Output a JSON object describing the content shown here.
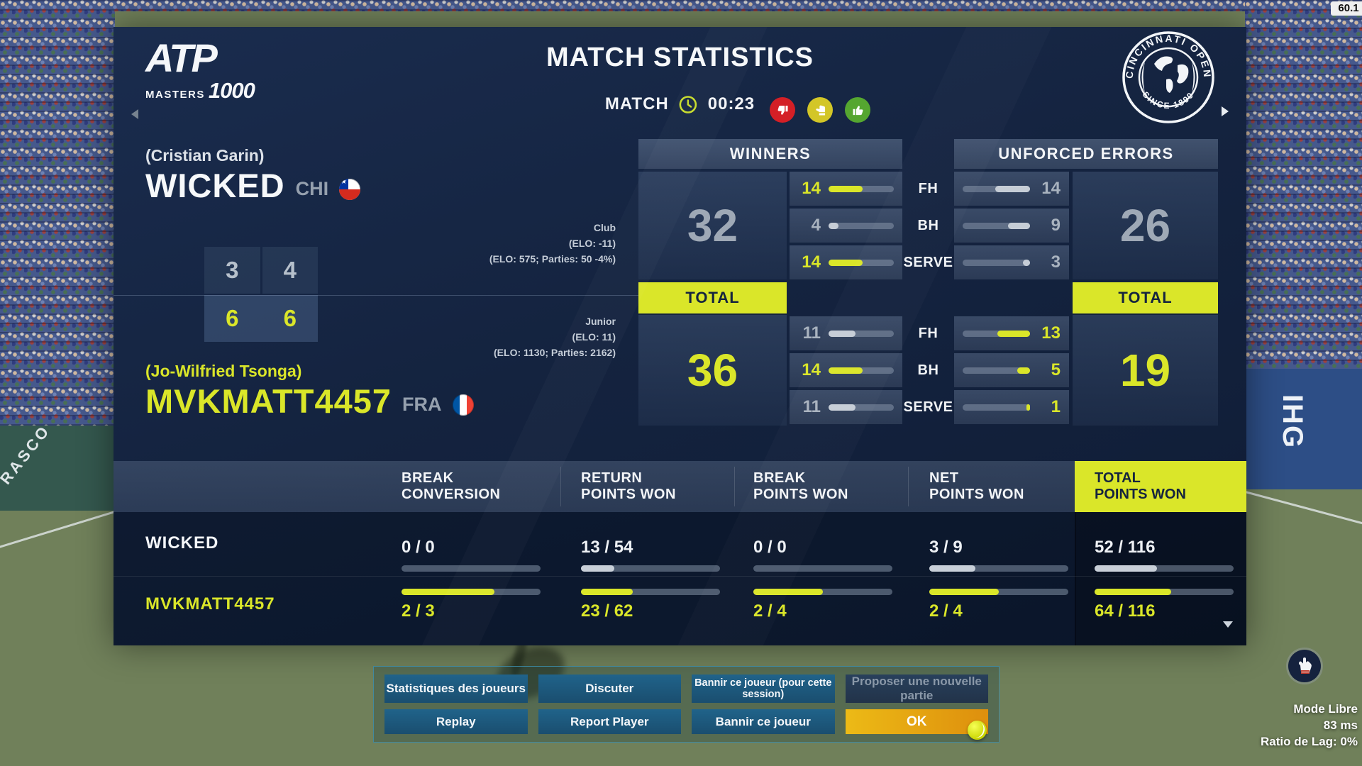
{
  "hud": {
    "fps": "60.1",
    "network": {
      "mode": "Mode Libre",
      "ping": "83 ms",
      "lag": "Ratio de Lag: 0%"
    }
  },
  "header": {
    "title": "MATCH STATISTICS",
    "match_label": "MATCH",
    "match_time": "00:23",
    "atp": {
      "line1": "ATP",
      "line2": "MASTERS",
      "line3": "1000"
    },
    "cincinnati": {
      "top": "CINCINNATI OPEN",
      "bottom": "SINCE 1899"
    }
  },
  "players": [
    {
      "real_name": "(Cristian Garin)",
      "gamertag": "WICKED",
      "country": "CHI",
      "rank_label": "Club",
      "elo_change": "(ELO: -11)",
      "elo_detail": "(ELO: 575; Parties: 50 -4%)",
      "sets": [
        "3",
        "4"
      ]
    },
    {
      "real_name": "(Jo-Wilfried Tsonga)",
      "gamertag": "MVKMATT4457",
      "country": "FRA",
      "rank_label": "Junior",
      "elo_change": "(ELO: 11)",
      "elo_detail": "(ELO: 1130; Parties: 2162)",
      "sets": [
        "6",
        "6"
      ]
    }
  ],
  "stats": {
    "row_labels": [
      "FH",
      "BH",
      "SERVE"
    ],
    "winners": {
      "title": "WINNERS",
      "total_label": "TOTAL",
      "p1_total": "32",
      "p2_total": "36",
      "p1_rows": [
        {
          "value": "14",
          "pct": 52,
          "hl": true
        },
        {
          "value": "4",
          "pct": 15,
          "hl": false
        },
        {
          "value": "14",
          "pct": 52,
          "hl": true
        }
      ],
      "p2_rows": [
        {
          "value": "11",
          "pct": 41,
          "hl": false
        },
        {
          "value": "14",
          "pct": 52,
          "hl": true
        },
        {
          "value": "11",
          "pct": 41,
          "hl": false
        }
      ]
    },
    "unforced_errors": {
      "title": "UNFORCED ERRORS",
      "total_label": "TOTAL",
      "p1_total": "26",
      "p2_total": "19",
      "p1_rows": [
        {
          "value": "14",
          "pct": 52,
          "hl": false
        },
        {
          "value": "9",
          "pct": 33,
          "hl": false
        },
        {
          "value": "3",
          "pct": 11,
          "hl": false
        }
      ],
      "p2_rows": [
        {
          "value": "13",
          "pct": 48,
          "hl": true
        },
        {
          "value": "5",
          "pct": 19,
          "hl": true
        },
        {
          "value": "1",
          "pct": 5,
          "hl": true
        }
      ]
    }
  },
  "table": {
    "columns": [
      "BREAK\nCONVERSION",
      "RETURN\nPOINTS WON",
      "BREAK\nPOINTS WON",
      "NET\nPOINTS WON",
      "TOTAL\nPOINTS WON"
    ],
    "rows": [
      {
        "player": "WICKED",
        "values": [
          "0 / 0",
          "13 / 54",
          "0 / 0",
          "3 / 9",
          "52 / 116"
        ],
        "pcts": [
          0,
          24,
          0,
          33,
          45
        ]
      },
      {
        "player": "MVKMATT4457",
        "values": [
          "2 / 3",
          "23 / 62",
          "2 / 4",
          "2 / 4",
          "64 / 116"
        ],
        "pcts": [
          67,
          37,
          50,
          50,
          55
        ]
      }
    ]
  },
  "menu": {
    "buttons": [
      {
        "label": "Statistiques des joueurs",
        "state": ""
      },
      {
        "label": "Discuter",
        "state": ""
      },
      {
        "label": "Bannir ce joueur (pour cette session)",
        "state": "small"
      },
      {
        "label": "Proposer une nouvelle partie",
        "state": "disabled"
      },
      {
        "label": "Replay",
        "state": ""
      },
      {
        "label": "Report Player",
        "state": ""
      },
      {
        "label": "Bannir ce joueur",
        "state": ""
      },
      {
        "label": "OK",
        "state": "primary"
      }
    ]
  },
  "side_ads": {
    "left": "RASCO",
    "right": "IHG"
  },
  "colors": {
    "accent_yellow": "#dae629",
    "panel_navy": "#14233f",
    "thumb_red": "#d41f26",
    "thumb_yellow": "#d3c627",
    "thumb_green": "#55a630",
    "ok_orange": "#de8f0d"
  }
}
